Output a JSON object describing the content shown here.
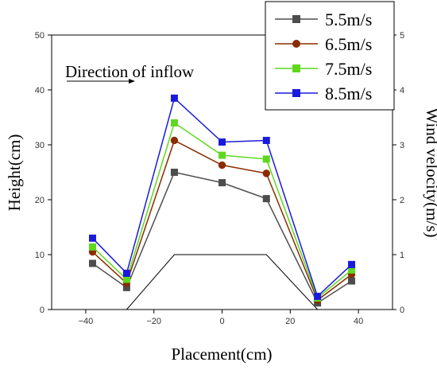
{
  "chart_data": {
    "type": "line",
    "title": "",
    "xlabel": "Placement(cm)",
    "ylabel_left": "Height(cm)",
    "ylabel_right": "Wind velocity(m/s)",
    "xlim": [
      -50,
      50
    ],
    "ylim_left": [
      0,
      50
    ],
    "ylim_right": [
      0,
      5
    ],
    "x_ticks": [
      -40,
      -20,
      0,
      20,
      40
    ],
    "y_ticks_left": [
      0,
      10,
      20,
      30,
      40,
      50
    ],
    "y_ticks_right": [
      0,
      1,
      2,
      3,
      4,
      5
    ],
    "grid": false,
    "legend_position": "top-right",
    "annotation": "Direction of inflow",
    "profile": {
      "x": [
        -40,
        -28,
        -14,
        13,
        28,
        40
      ],
      "y": [
        0,
        0,
        10,
        10,
        0,
        0
      ]
    },
    "x": [
      -38,
      -28,
      -14,
      0,
      13,
      28,
      38
    ],
    "series": [
      {
        "name": "5.5m/s",
        "color": "#4d4d4d",
        "marker": "square",
        "values": [
          0.84,
          0.4,
          2.5,
          2.31,
          2.02,
          0.12,
          0.52
        ]
      },
      {
        "name": "6.5m/s",
        "color": "#8b2c00",
        "marker": "circle",
        "values": [
          1.05,
          0.48,
          3.08,
          2.63,
          2.48,
          0.17,
          0.64
        ]
      },
      {
        "name": "7.5m/s",
        "color": "#5ed81e",
        "marker": "square",
        "values": [
          1.14,
          0.55,
          3.4,
          2.81,
          2.74,
          0.21,
          0.72
        ]
      },
      {
        "name": "8.5m/s",
        "color": "#1a1adb",
        "marker": "square",
        "values": [
          1.3,
          0.66,
          3.85,
          3.05,
          3.08,
          0.24,
          0.82
        ]
      }
    ]
  }
}
